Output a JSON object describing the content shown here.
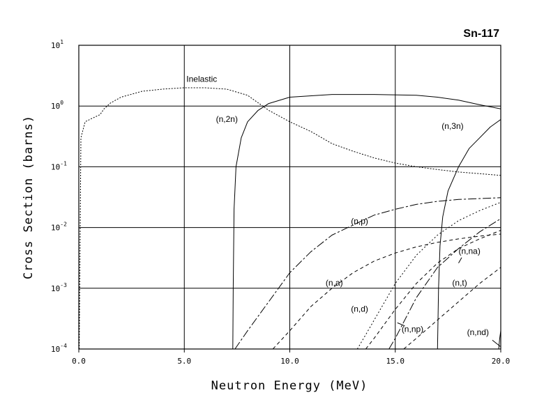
{
  "chart_data": {
    "type": "line",
    "title": "Sn-117",
    "xlabel": "Neutron Energy (MeV)",
    "ylabel": "Cross Section (barns)",
    "xlim": [
      0,
      20
    ],
    "ylim": [
      0.0001,
      10
    ],
    "yscale": "log",
    "grid": true,
    "x_ticks": [
      {
        "value": 0,
        "label": "0.0"
      },
      {
        "value": 5,
        "label": "5.0"
      },
      {
        "value": 10,
        "label": "10.0"
      },
      {
        "value": 15,
        "label": "15.0"
      },
      {
        "value": 20,
        "label": "20.0"
      }
    ],
    "y_ticks": [
      {
        "value": 10,
        "base": "10",
        "exp": "1"
      },
      {
        "value": 1,
        "base": "10",
        "exp": "0"
      },
      {
        "value": 0.1,
        "base": "10",
        "exp": "-1"
      },
      {
        "value": 0.01,
        "base": "10",
        "exp": "-2"
      },
      {
        "value": 0.001,
        "base": "10",
        "exp": "-3"
      },
      {
        "value": 0.0001,
        "base": "10",
        "exp": "-4"
      }
    ],
    "series": [
      {
        "name": "Inelastic",
        "dash": "2,2",
        "points": [
          [
            0.02,
            0.0001
          ],
          [
            0.1,
            0.3
          ],
          [
            0.3,
            0.55
          ],
          [
            0.6,
            0.62
          ],
          [
            1.0,
            0.72
          ],
          [
            1.2,
            0.9
          ],
          [
            1.5,
            1.12
          ],
          [
            2.0,
            1.4
          ],
          [
            3.0,
            1.75
          ],
          [
            4.0,
            1.9
          ],
          [
            5.0,
            2.0
          ],
          [
            6.0,
            2.0
          ],
          [
            7.0,
            1.9
          ],
          [
            8.0,
            1.5
          ],
          [
            9.0,
            0.85
          ],
          [
            10.0,
            0.55
          ],
          [
            11.0,
            0.38
          ],
          [
            12.0,
            0.24
          ],
          [
            13.0,
            0.18
          ],
          [
            14.0,
            0.14
          ],
          [
            15.0,
            0.115
          ],
          [
            16.0,
            0.1
          ],
          [
            17.0,
            0.09
          ],
          [
            18.0,
            0.082
          ],
          [
            19.0,
            0.077
          ],
          [
            20.0,
            0.072
          ]
        ]
      },
      {
        "name": "(n,2n)",
        "dash": "",
        "points": [
          [
            7.3,
            0.0001
          ],
          [
            7.32,
            0.001
          ],
          [
            7.36,
            0.02
          ],
          [
            7.45,
            0.1
          ],
          [
            7.7,
            0.3
          ],
          [
            8.0,
            0.55
          ],
          [
            8.5,
            0.85
          ],
          [
            9.0,
            1.1
          ],
          [
            10.0,
            1.4
          ],
          [
            12.0,
            1.55
          ],
          [
            14.0,
            1.55
          ],
          [
            16.0,
            1.5
          ],
          [
            17.0,
            1.4
          ],
          [
            18.0,
            1.25
          ],
          [
            19.0,
            1.05
          ],
          [
            20.0,
            0.9
          ]
        ]
      },
      {
        "name": "(n,3n)",
        "dash": "",
        "points": [
          [
            17.0,
            0.0001
          ],
          [
            17.05,
            0.001
          ],
          [
            17.12,
            0.005
          ],
          [
            17.25,
            0.015
          ],
          [
            17.5,
            0.04
          ],
          [
            18.0,
            0.1
          ],
          [
            18.5,
            0.2
          ],
          [
            19.0,
            0.3
          ],
          [
            19.5,
            0.45
          ],
          [
            20.0,
            0.6
          ]
        ]
      },
      {
        "name": "(n,p)",
        "dash": "12,3,3,3",
        "points": [
          [
            7.4,
            0.0001
          ],
          [
            8.0,
            0.0002
          ],
          [
            9.0,
            0.0006
          ],
          [
            10.0,
            0.0018
          ],
          [
            11.0,
            0.004
          ],
          [
            12.0,
            0.0075
          ],
          [
            13.0,
            0.011
          ],
          [
            14.0,
            0.016
          ],
          [
            15.0,
            0.02
          ],
          [
            16.0,
            0.024
          ],
          [
            17.0,
            0.027
          ],
          [
            18.0,
            0.029
          ],
          [
            19.0,
            0.03
          ],
          [
            20.0,
            0.031
          ]
        ]
      },
      {
        "name": "(n,a)",
        "dash": "5,4",
        "points": [
          [
            9.2,
            0.0001
          ],
          [
            10.0,
            0.0002
          ],
          [
            11.0,
            0.0005
          ],
          [
            12.0,
            0.001
          ],
          [
            13.0,
            0.0018
          ],
          [
            14.0,
            0.0028
          ],
          [
            15.0,
            0.0038
          ],
          [
            16.0,
            0.0048
          ],
          [
            17.0,
            0.0057
          ],
          [
            18.0,
            0.0065
          ],
          [
            19.0,
            0.0072
          ],
          [
            20.0,
            0.0078
          ]
        ]
      },
      {
        "name": "(n,d)",
        "dash": "2,3",
        "points": [
          [
            13.2,
            0.0001
          ],
          [
            13.5,
            0.00015
          ],
          [
            14.0,
            0.0003
          ],
          [
            15.0,
            0.0012
          ],
          [
            16.0,
            0.0035
          ],
          [
            17.0,
            0.0075
          ],
          [
            18.0,
            0.013
          ],
          [
            19.0,
            0.019
          ],
          [
            20.0,
            0.026
          ]
        ]
      },
      {
        "name": "(n,na)",
        "dash": "5,4",
        "points": [
          [
            13.6,
            0.0001
          ],
          [
            14.0,
            0.00015
          ],
          [
            15.0,
            0.00045
          ],
          [
            16.0,
            0.0012
          ],
          [
            17.0,
            0.0026
          ],
          [
            18.0,
            0.0045
          ],
          [
            19.0,
            0.0065
          ],
          [
            20.0,
            0.009
          ]
        ]
      },
      {
        "name": "(n,np)",
        "dash": "12,3,3,3",
        "points": [
          [
            14.7,
            0.0001
          ],
          [
            15.0,
            0.00015
          ],
          [
            16.0,
            0.0007
          ],
          [
            17.0,
            0.0022
          ],
          [
            18.0,
            0.0045
          ],
          [
            19.0,
            0.0085
          ],
          [
            20.0,
            0.014
          ]
        ]
      },
      {
        "name": "(n,t)",
        "dash": "5,4",
        "points": [
          [
            15.4,
            0.0001
          ],
          [
            16.0,
            0.00015
          ],
          [
            17.0,
            0.0003
          ],
          [
            18.0,
            0.0006
          ],
          [
            19.0,
            0.0012
          ],
          [
            20.0,
            0.0022
          ]
        ]
      },
      {
        "name": "(n,nd)",
        "dash": "",
        "points": [
          [
            19.9,
            0.0001
          ],
          [
            19.95,
            0.00015
          ],
          [
            20.0,
            0.0002
          ]
        ]
      }
    ],
    "annotations": [
      {
        "text": "Inelastic",
        "x": 5.1,
        "y": 2.5
      },
      {
        "text": "(n,2n)",
        "x": 6.5,
        "y": 0.55
      },
      {
        "text": "(n,3n)",
        "x": 17.2,
        "y": 0.42
      },
      {
        "text": "(n,p)",
        "x": 12.9,
        "y": 0.0115
      },
      {
        "text": "(n,a)",
        "x": 11.7,
        "y": 0.0011
      },
      {
        "text": "(n,d)",
        "x": 12.9,
        "y": 0.00041
      },
      {
        "text": "(n,na)",
        "x": 18.0,
        "y": 0.0037
      },
      {
        "text": "(n,t)",
        "x": 17.7,
        "y": 0.0011
      },
      {
        "text": "(n,np)",
        "x": 15.3,
        "y": 0.00019
      },
      {
        "text": "(n,nd)",
        "x": 18.4,
        "y": 0.00017
      }
    ]
  }
}
